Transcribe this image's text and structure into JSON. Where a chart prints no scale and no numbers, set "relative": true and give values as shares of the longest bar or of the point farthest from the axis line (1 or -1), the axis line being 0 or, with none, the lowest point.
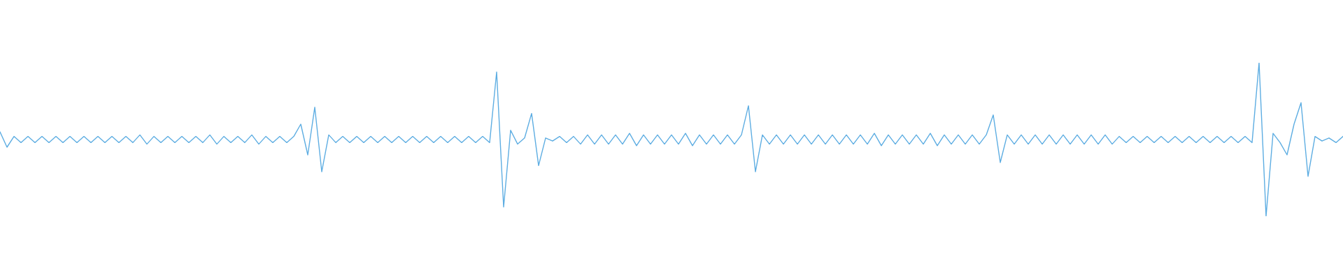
{
  "chart_data": {
    "type": "line",
    "relative": true,
    "categories": [
      null,
      null,
      null,
      null,
      null,
      null,
      null,
      null,
      null,
      null,
      null,
      null,
      null,
      null,
      null,
      null,
      null,
      null,
      null,
      null,
      null,
      null,
      null,
      null,
      null,
      null,
      null,
      null,
      null,
      null,
      null,
      null,
      null,
      null,
      null,
      null,
      null,
      null,
      null,
      null,
      null,
      null,
      null,
      null,
      null,
      null,
      null,
      null,
      null,
      null,
      null,
      null,
      null,
      null,
      null,
      null,
      null,
      null,
      null,
      null,
      null,
      null,
      null,
      null,
      null,
      null,
      null,
      null,
      null,
      null,
      null,
      null,
      null,
      null,
      null,
      null,
      null,
      null,
      null,
      null,
      null,
      null,
      null,
      null,
      null,
      null,
      null,
      null,
      null,
      null,
      null,
      null,
      null,
      null,
      null,
      null,
      null,
      null,
      null,
      null,
      null,
      null,
      null,
      null,
      null,
      null,
      null,
      null,
      null,
      null,
      null,
      null,
      null,
      null,
      null,
      null,
      null,
      null,
      null,
      null,
      null,
      null,
      null,
      null,
      null,
      null,
      null,
      null,
      null,
      null,
      null,
      null,
      null,
      null,
      null,
      null,
      null,
      null,
      null,
      null,
      null,
      null,
      null,
      null,
      null,
      null,
      null,
      null,
      null,
      null,
      null,
      null,
      null,
      null,
      null,
      null,
      null,
      null,
      null,
      null,
      null,
      null,
      null,
      null,
      null,
      null,
      null,
      null,
      null,
      null,
      null,
      null,
      null,
      null,
      null,
      null,
      null,
      null,
      null,
      null,
      null,
      null,
      null,
      null,
      null,
      null,
      null,
      null,
      null,
      null,
      null,
      null,
      null
    ],
    "series": [
      {
        "color": "#5dade2",
        "values": [
          0.55,
          0.45,
          0.52,
          0.48,
          0.52,
          0.48,
          0.52,
          0.48,
          0.52,
          0.48,
          0.52,
          0.48,
          0.52,
          0.48,
          0.52,
          0.48,
          0.52,
          0.48,
          0.52,
          0.48,
          0.53,
          0.47,
          0.52,
          0.48,
          0.52,
          0.48,
          0.52,
          0.48,
          0.52,
          0.48,
          0.53,
          0.47,
          0.52,
          0.48,
          0.52,
          0.48,
          0.53,
          0.47,
          0.52,
          0.48,
          0.52,
          0.48,
          0.52,
          0.6,
          0.4,
          0.71,
          0.29,
          0.53,
          0.48,
          0.52,
          0.48,
          0.52,
          0.48,
          0.52,
          0.48,
          0.52,
          0.48,
          0.52,
          0.48,
          0.52,
          0.48,
          0.52,
          0.48,
          0.52,
          0.48,
          0.52,
          0.48,
          0.52,
          0.48,
          0.52,
          0.48,
          0.94,
          0.06,
          0.56,
          0.47,
          0.51,
          0.67,
          0.33,
          0.51,
          0.49,
          0.52,
          0.48,
          0.52,
          0.47,
          0.53,
          0.47,
          0.53,
          0.47,
          0.53,
          0.47,
          0.54,
          0.46,
          0.53,
          0.47,
          0.53,
          0.47,
          0.53,
          0.47,
          0.54,
          0.46,
          0.53,
          0.47,
          0.53,
          0.47,
          0.53,
          0.47,
          0.53,
          0.72,
          0.29,
          0.53,
          0.47,
          0.53,
          0.47,
          0.53,
          0.47,
          0.53,
          0.47,
          0.53,
          0.47,
          0.53,
          0.47,
          0.53,
          0.47,
          0.53,
          0.47,
          0.54,
          0.46,
          0.53,
          0.47,
          0.53,
          0.47,
          0.53,
          0.47,
          0.54,
          0.46,
          0.53,
          0.47,
          0.53,
          0.47,
          0.53,
          0.47,
          0.53,
          0.66,
          0.35,
          0.53,
          0.47,
          0.53,
          0.47,
          0.53,
          0.47,
          0.53,
          0.47,
          0.53,
          0.47,
          0.53,
          0.47,
          0.53,
          0.47,
          0.53,
          0.47,
          0.52,
          0.48,
          0.52,
          0.48,
          0.52,
          0.48,
          0.52,
          0.48,
          0.52,
          0.48,
          0.52,
          0.48,
          0.52,
          0.48,
          0.52,
          0.48,
          0.52,
          0.48,
          0.52,
          0.48,
          1.0,
          0.0,
          0.54,
          0.48,
          0.4,
          0.6,
          0.74,
          0.26,
          0.52,
          0.49,
          0.51,
          0.48,
          0.52
        ]
      }
    ]
  }
}
